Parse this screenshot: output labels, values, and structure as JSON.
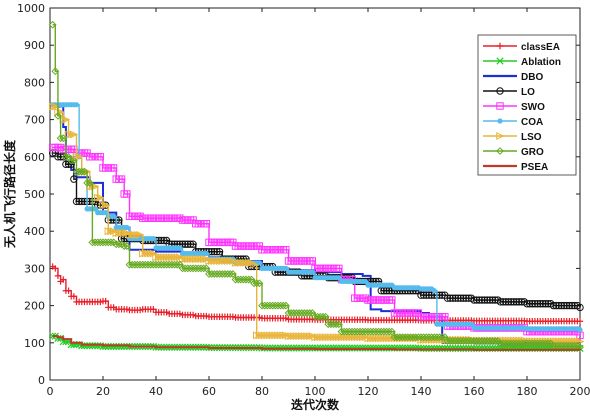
{
  "chart_data": {
    "type": "line",
    "title": "",
    "xlabel": "迭代次数",
    "ylabel": "无人机飞行路径长度",
    "xlim": [
      0,
      200
    ],
    "ylim": [
      0,
      1000
    ],
    "xticks": [
      0,
      20,
      40,
      60,
      80,
      100,
      120,
      140,
      160,
      180,
      200
    ],
    "yticks": [
      0,
      100,
      200,
      300,
      400,
      500,
      600,
      700,
      800,
      900,
      1000
    ],
    "grid": false,
    "legend_position": "top-right",
    "series": [
      {
        "name": "classEA",
        "color": "#e8202a",
        "marker": "plus",
        "points": [
          [
            1,
            305
          ],
          [
            2,
            300
          ],
          [
            3,
            280
          ],
          [
            4,
            265
          ],
          [
            5,
            270
          ],
          [
            6,
            240
          ],
          [
            8,
            225
          ],
          [
            10,
            210
          ],
          [
            15,
            210
          ],
          [
            20,
            212
          ],
          [
            22,
            195
          ],
          [
            25,
            190
          ],
          [
            30,
            188
          ],
          [
            35,
            190
          ],
          [
            40,
            182
          ],
          [
            45,
            178
          ],
          [
            50,
            175
          ],
          [
            55,
            172
          ],
          [
            60,
            170
          ],
          [
            70,
            168
          ],
          [
            80,
            166
          ],
          [
            90,
            163
          ],
          [
            100,
            162
          ],
          [
            120,
            161
          ],
          [
            140,
            160
          ],
          [
            160,
            159
          ],
          [
            180,
            158
          ],
          [
            200,
            158
          ]
        ]
      },
      {
        "name": "Ablation",
        "color": "#22cc22",
        "marker": "x",
        "points": [
          [
            1,
            118
          ],
          [
            3,
            112
          ],
          [
            5,
            103
          ],
          [
            8,
            95
          ],
          [
            12,
            92
          ],
          [
            20,
            90
          ],
          [
            40,
            88
          ],
          [
            60,
            87
          ],
          [
            80,
            86
          ],
          [
            100,
            86
          ],
          [
            140,
            85
          ],
          [
            200,
            85
          ]
        ]
      },
      {
        "name": "DBO",
        "color": "#1a2fd6",
        "marker": "none",
        "points": [
          [
            1,
            740
          ],
          [
            2,
            735
          ],
          [
            4,
            740
          ],
          [
            5,
            680
          ],
          [
            6,
            600
          ],
          [
            8,
            565
          ],
          [
            10,
            545
          ],
          [
            15,
            530
          ],
          [
            20,
            450
          ],
          [
            25,
            410
          ],
          [
            30,
            350
          ],
          [
            40,
            345
          ],
          [
            50,
            340
          ],
          [
            60,
            330
          ],
          [
            70,
            320
          ],
          [
            80,
            300
          ],
          [
            90,
            295
          ],
          [
            100,
            290
          ],
          [
            110,
            285
          ],
          [
            118,
            280
          ],
          [
            121,
            190
          ],
          [
            125,
            185
          ],
          [
            140,
            180
          ],
          [
            143,
            170
          ],
          [
            148,
            100
          ],
          [
            160,
            98
          ],
          [
            200,
            95
          ]
        ]
      },
      {
        "name": "LO",
        "color": "#111111",
        "marker": "circle",
        "points": [
          [
            1,
            610
          ],
          [
            3,
            600
          ],
          [
            6,
            580
          ],
          [
            9,
            540
          ],
          [
            10,
            480
          ],
          [
            14,
            480
          ],
          [
            18,
            470
          ],
          [
            22,
            430
          ],
          [
            27,
            380
          ],
          [
            35,
            375
          ],
          [
            45,
            365
          ],
          [
            55,
            345
          ],
          [
            65,
            325
          ],
          [
            75,
            305
          ],
          [
            85,
            290
          ],
          [
            95,
            280
          ],
          [
            105,
            275
          ],
          [
            115,
            265
          ],
          [
            125,
            240
          ],
          [
            140,
            228
          ],
          [
            150,
            220
          ],
          [
            160,
            215
          ],
          [
            170,
            210
          ],
          [
            180,
            205
          ],
          [
            190,
            200
          ],
          [
            200,
            195
          ]
        ]
      },
      {
        "name": "SWO",
        "color": "#ff33ff",
        "marker": "square",
        "points": [
          [
            1,
            625
          ],
          [
            5,
            620
          ],
          [
            10,
            610
          ],
          [
            15,
            600
          ],
          [
            20,
            570
          ],
          [
            25,
            540
          ],
          [
            28,
            500
          ],
          [
            30,
            440
          ],
          [
            35,
            435
          ],
          [
            40,
            435
          ],
          [
            50,
            430
          ],
          [
            55,
            420
          ],
          [
            60,
            370
          ],
          [
            70,
            360
          ],
          [
            80,
            350
          ],
          [
            90,
            320
          ],
          [
            100,
            300
          ],
          [
            110,
            270
          ],
          [
            115,
            220
          ],
          [
            120,
            215
          ],
          [
            130,
            180
          ],
          [
            140,
            170
          ],
          [
            150,
            145
          ],
          [
            160,
            140
          ],
          [
            180,
            130
          ],
          [
            200,
            120
          ]
        ]
      },
      {
        "name": "COA",
        "color": "#55bbee",
        "marker": "dot",
        "points": [
          [
            1,
            740
          ],
          [
            10,
            740
          ],
          [
            11,
            600
          ],
          [
            12,
            560
          ],
          [
            14,
            460
          ],
          [
            18,
            450
          ],
          [
            22,
            440
          ],
          [
            25,
            410
          ],
          [
            30,
            380
          ],
          [
            40,
            355
          ],
          [
            50,
            340
          ],
          [
            60,
            325
          ],
          [
            70,
            315
          ],
          [
            80,
            300
          ],
          [
            90,
            290
          ],
          [
            100,
            275
          ],
          [
            110,
            265
          ],
          [
            120,
            255
          ],
          [
            130,
            248
          ],
          [
            140,
            245
          ],
          [
            145,
            240
          ],
          [
            146,
            150
          ],
          [
            160,
            140
          ],
          [
            180,
            138
          ],
          [
            200,
            135
          ]
        ]
      },
      {
        "name": "LSO",
        "color": "#e8b53a",
        "marker": "triangle-right",
        "points": [
          [
            1,
            735
          ],
          [
            3,
            720
          ],
          [
            5,
            700
          ],
          [
            7,
            660
          ],
          [
            10,
            600
          ],
          [
            12,
            560
          ],
          [
            15,
            520
          ],
          [
            18,
            490
          ],
          [
            20,
            470
          ],
          [
            22,
            400
          ],
          [
            25,
            395
          ],
          [
            30,
            390
          ],
          [
            35,
            340
          ],
          [
            40,
            330
          ],
          [
            50,
            325
          ],
          [
            60,
            320
          ],
          [
            70,
            315
          ],
          [
            77,
            310
          ],
          [
            78,
            120
          ],
          [
            90,
            118
          ],
          [
            100,
            115
          ],
          [
            120,
            112
          ],
          [
            140,
            108
          ],
          [
            160,
            106
          ],
          [
            180,
            104
          ],
          [
            200,
            103
          ]
        ]
      },
      {
        "name": "GRO",
        "color": "#66aa22",
        "marker": "diamond",
        "points": [
          [
            1,
            955
          ],
          [
            2,
            830
          ],
          [
            3,
            710
          ],
          [
            4,
            650
          ],
          [
            6,
            600
          ],
          [
            8,
            590
          ],
          [
            10,
            560
          ],
          [
            14,
            530
          ],
          [
            16,
            370
          ],
          [
            20,
            370
          ],
          [
            25,
            365
          ],
          [
            28,
            360
          ],
          [
            30,
            310
          ],
          [
            40,
            310
          ],
          [
            50,
            300
          ],
          [
            60,
            285
          ],
          [
            70,
            270
          ],
          [
            77,
            260
          ],
          [
            80,
            200
          ],
          [
            90,
            180
          ],
          [
            100,
            170
          ],
          [
            105,
            150
          ],
          [
            110,
            130
          ],
          [
            130,
            115
          ],
          [
            150,
            105
          ],
          [
            170,
            98
          ],
          [
            190,
            92
          ],
          [
            200,
            88
          ]
        ]
      },
      {
        "name": "PSEA",
        "color": "#c0392b",
        "marker": "none",
        "points": [
          [
            1,
            118
          ],
          [
            3,
            115
          ],
          [
            5,
            110
          ],
          [
            8,
            100
          ],
          [
            12,
            95
          ],
          [
            20,
            93
          ],
          [
            30,
            90
          ],
          [
            40,
            88
          ],
          [
            60,
            86
          ],
          [
            80,
            84
          ],
          [
            100,
            83
          ],
          [
            130,
            82
          ],
          [
            160,
            81
          ],
          [
            200,
            80
          ]
        ]
      }
    ]
  }
}
